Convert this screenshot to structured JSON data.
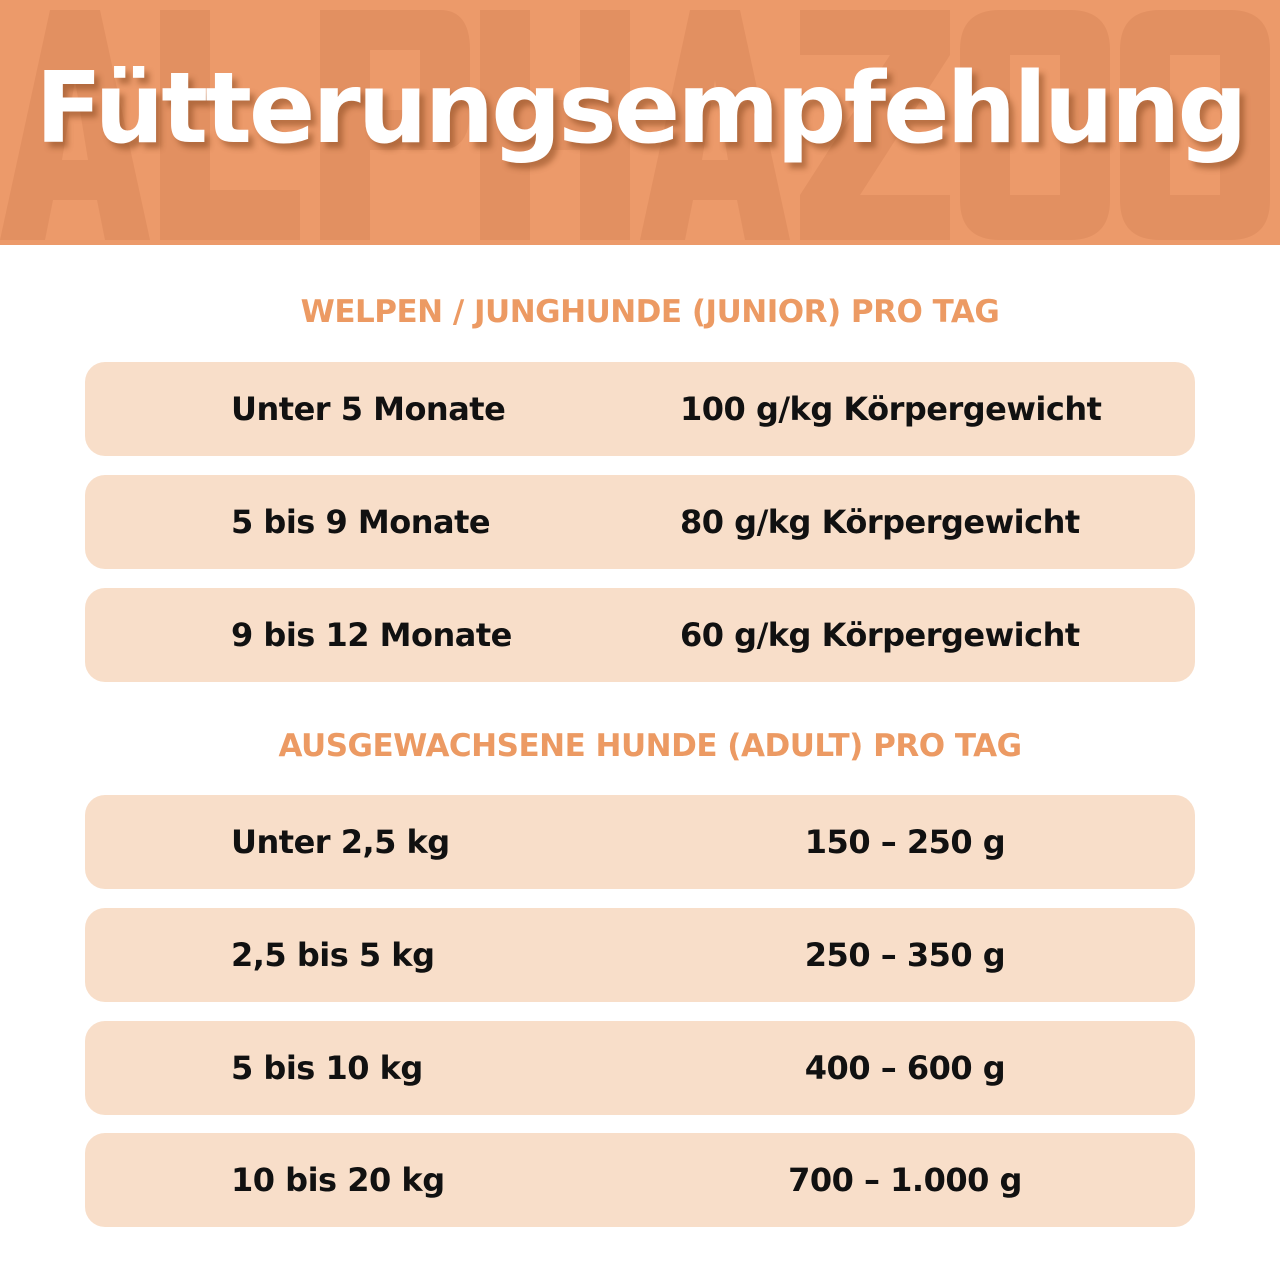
{
  "header": {
    "title": "Fütterungsempfehlung",
    "watermark": "ALPHAZOO"
  },
  "colors": {
    "header_bg": "#EC9A6A",
    "accent": "#EC9A63",
    "row_bg": "#F8DEC9"
  },
  "junior": {
    "heading": "WELPEN / JUNGHUNDE (JUNIOR) PRO TAG",
    "rows": [
      {
        "age": "Unter 5 Monate",
        "amount": "100 g/kg Körpergewicht"
      },
      {
        "age": "5 bis 9 Monate",
        "amount": "80 g/kg Körpergewicht"
      },
      {
        "age": "9 bis 12 Monate",
        "amount": "60 g/kg Körpergewicht"
      }
    ]
  },
  "adult": {
    "heading": "AUSGEWACHSENE HUNDE (ADULT) PRO TAG",
    "rows": [
      {
        "weight": "Unter 2,5 kg",
        "amount": "150 – 250 g"
      },
      {
        "weight": "2,5 bis 5 kg",
        "amount": "250 – 350 g"
      },
      {
        "weight": "5 bis 10 kg",
        "amount": "400 – 600 g"
      },
      {
        "weight": "10 bis 20 kg",
        "amount": "700 – 1.000 g"
      }
    ]
  }
}
